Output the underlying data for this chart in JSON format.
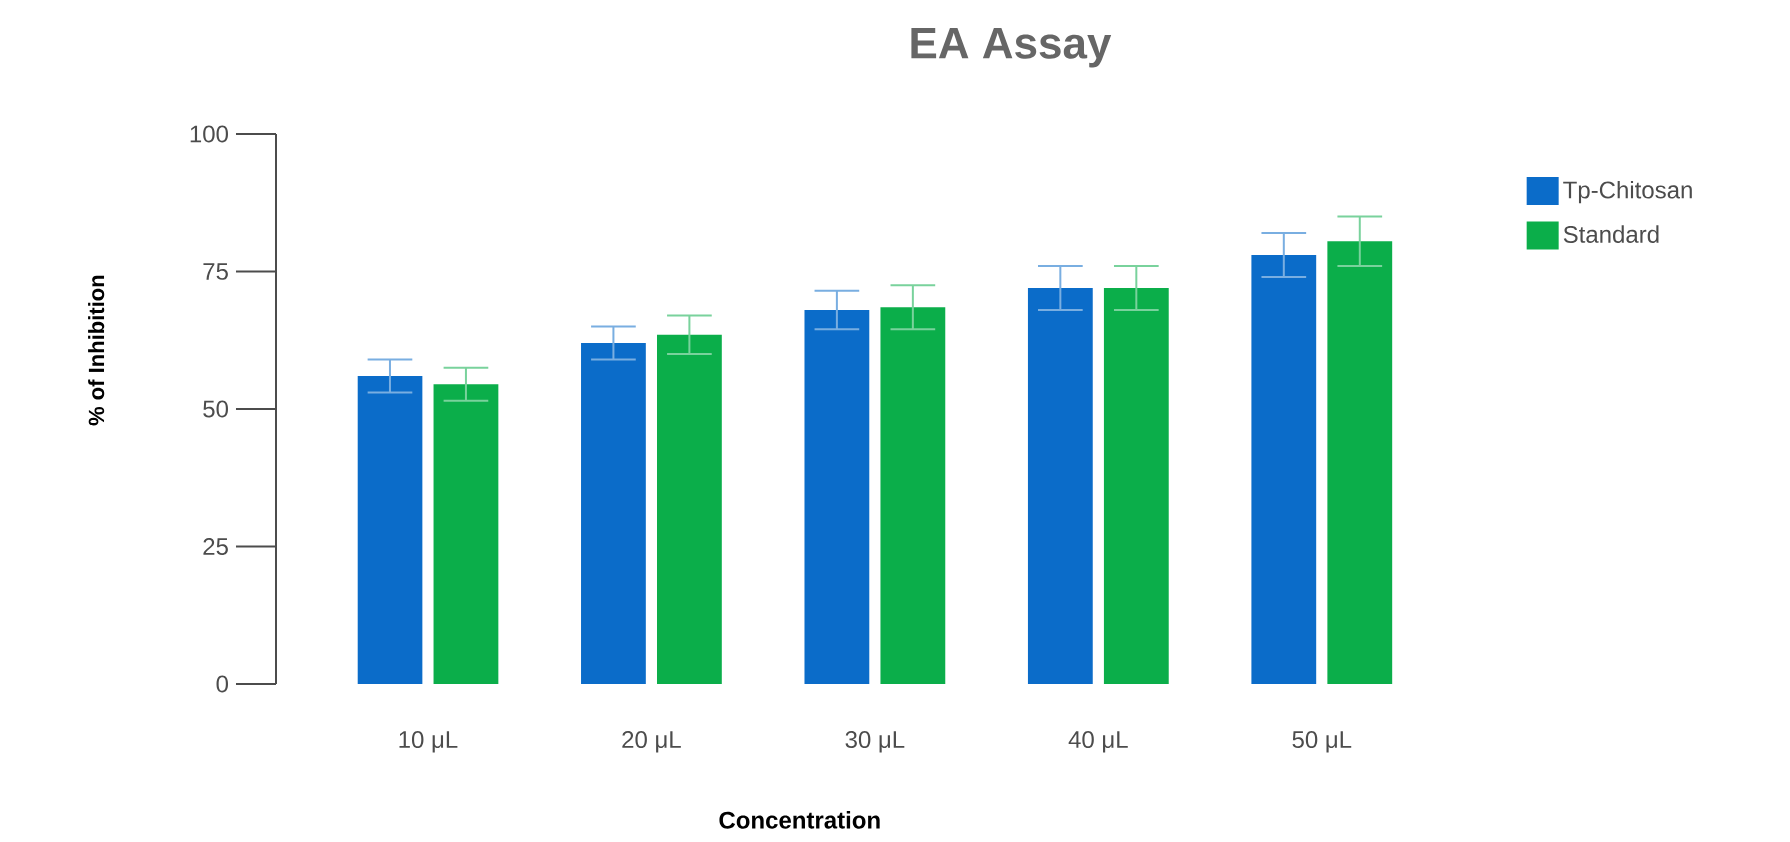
{
  "chart_data": {
    "type": "bar",
    "title": "EA Assay",
    "xlabel": "Concentration",
    "ylabel": "% of Inhibition",
    "categories": [
      "10 μL",
      "20 μL",
      "30 μL",
      "40 μL",
      "50 μL"
    ],
    "series": [
      {
        "name": "Tp-Chitosan",
        "color": "#0b6cc9",
        "values": [
          56,
          62,
          68,
          72,
          78
        ],
        "errors": [
          3,
          3,
          3.5,
          4,
          4
        ]
      },
      {
        "name": "Standard",
        "color": "#0bae4a",
        "values": [
          54.5,
          63.5,
          68.5,
          72,
          80.5
        ],
        "errors": [
          3,
          3.5,
          4,
          4,
          4.5
        ]
      }
    ],
    "ylim": [
      0,
      100
    ],
    "yticks": [
      0,
      25,
      50,
      75,
      100
    ],
    "grid": false,
    "legend": "top right"
  }
}
